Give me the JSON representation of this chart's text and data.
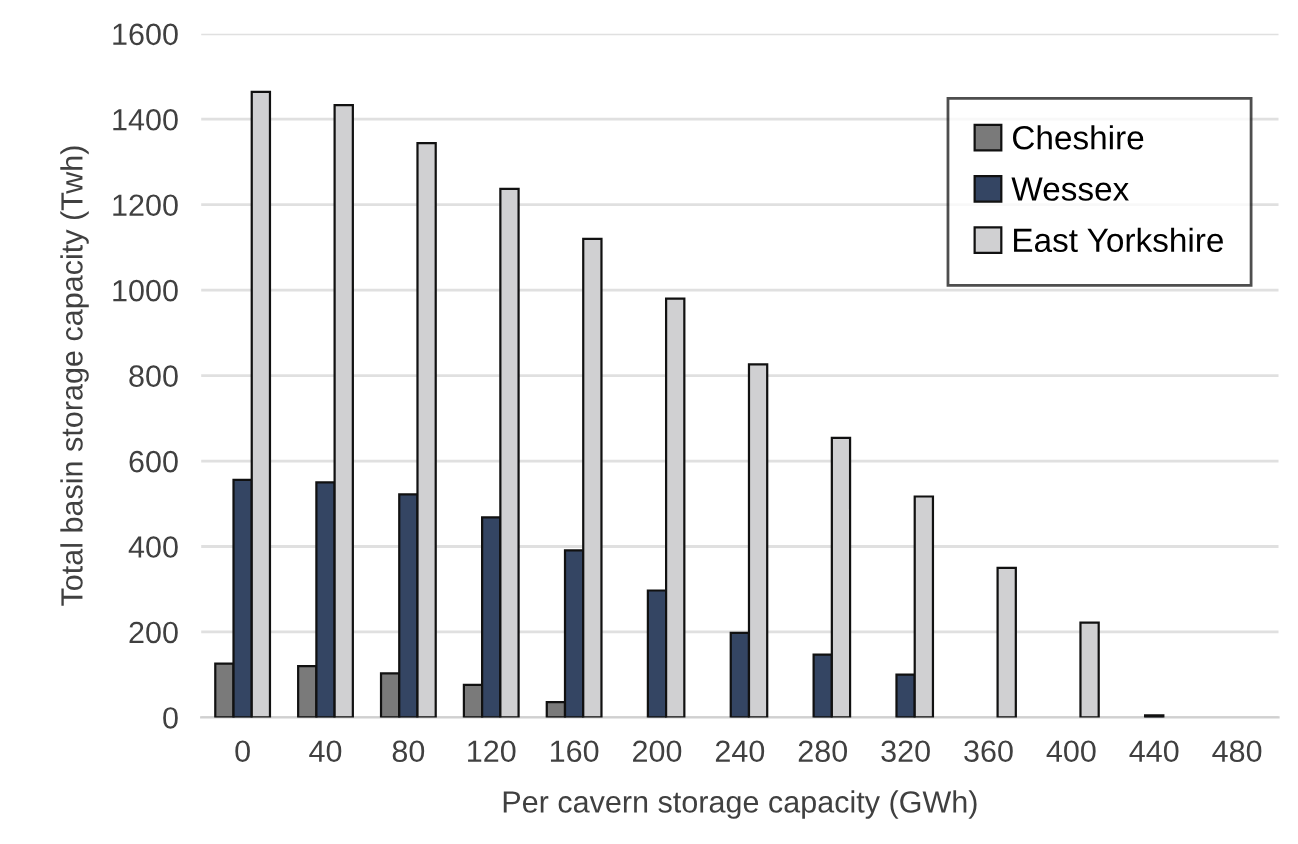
{
  "chart_data": {
    "type": "bar",
    "xlabel": "Per cavern storage capacity (GWh)",
    "ylabel": "Total basin storage capacity (Twh)",
    "categories": [
      "0",
      "40",
      "80",
      "120",
      "160",
      "200",
      "240",
      "280",
      "320",
      "360",
      "400",
      "440",
      "480"
    ],
    "series": [
      {
        "name": "Cheshire",
        "color": "#7a7a7a",
        "values": [
          126,
          120,
          103,
          76,
          36,
          null,
          null,
          null,
          null,
          null,
          null,
          null,
          null
        ]
      },
      {
        "name": "Wessex",
        "color": "#344563",
        "values": [
          556,
          550,
          522,
          468,
          391,
          297,
          198,
          147,
          100,
          null,
          null,
          5,
          null
        ]
      },
      {
        "name": "East Yorkshire",
        "color": "#d0d0d2",
        "values": [
          1464,
          1433,
          1344,
          1237,
          1120,
          980,
          826,
          654,
          517,
          350,
          222,
          null,
          null
        ]
      }
    ],
    "ylim": [
      0,
      1600
    ],
    "yticks": [
      0,
      200,
      400,
      600,
      800,
      1000,
      1200,
      1400,
      1600
    ],
    "grid": "y",
    "legend": "top right"
  }
}
